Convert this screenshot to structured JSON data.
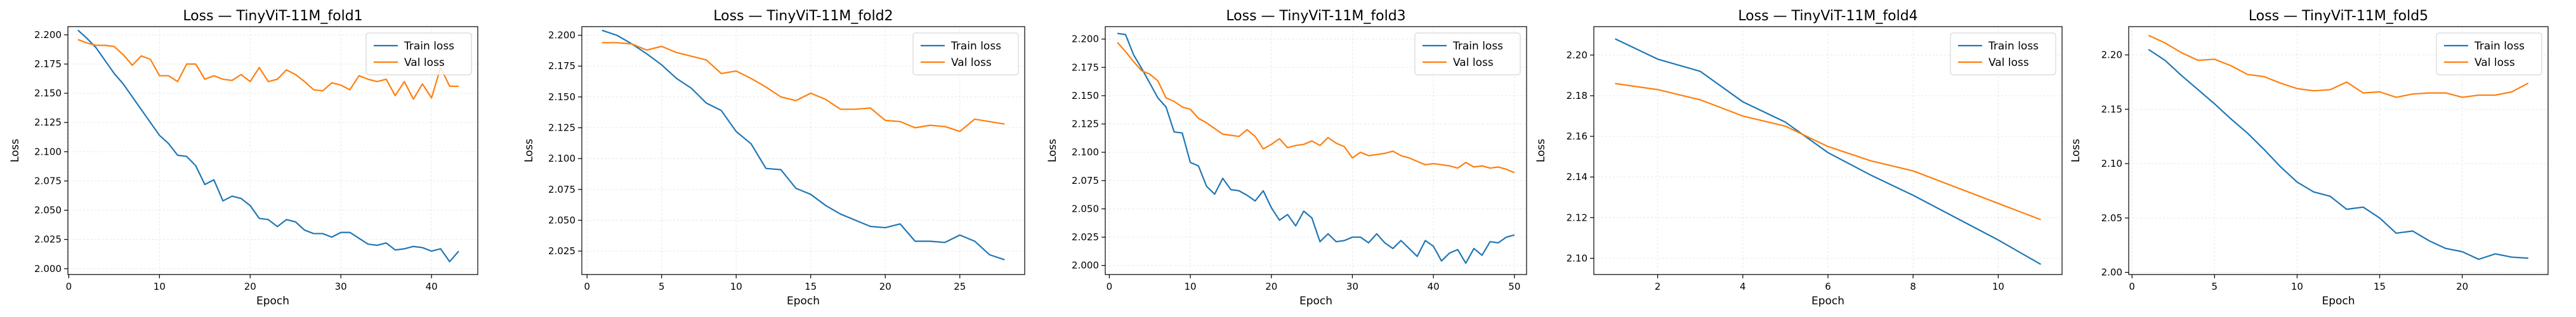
{
  "colors": {
    "train": "#1f77b4",
    "val": "#ff7f0e"
  },
  "chart_data": [
    {
      "type": "line",
      "title": "Loss — TinyViT-11M_fold1",
      "xlabel": "Epoch",
      "ylabel": "Loss",
      "xlim": [
        -0.1,
        45.1
      ],
      "ylim": [
        1.995,
        2.207
      ],
      "xticks": [
        0,
        10,
        20,
        30,
        40
      ],
      "yticks": [
        2.0,
        2.025,
        2.05,
        2.075,
        2.1,
        2.125,
        2.15,
        2.175,
        2.2
      ],
      "tick_decimals": 3,
      "grid": true,
      "legend_position": "upper right",
      "series": [
        {
          "name": "Train loss",
          "color": "#1f77b4",
          "x": [
            1,
            2,
            3,
            4,
            5,
            6,
            7,
            8,
            9,
            10,
            11,
            12,
            13,
            14,
            15,
            16,
            17,
            18,
            19,
            20,
            21,
            22,
            23,
            24,
            25,
            26,
            27,
            28,
            29,
            30,
            31,
            32,
            33,
            34,
            35,
            36,
            37,
            38,
            39,
            40,
            41,
            42,
            43
          ],
          "y": [
            2.204,
            2.197,
            2.189,
            2.178,
            2.167,
            2.158,
            2.147,
            2.136,
            2.125,
            2.114,
            2.107,
            2.097,
            2.096,
            2.088,
            2.072,
            2.076,
            2.058,
            2.062,
            2.06,
            2.054,
            2.043,
            2.042,
            2.036,
            2.042,
            2.04,
            2.033,
            2.03,
            2.03,
            2.027,
            2.031,
            2.031,
            2.026,
            2.021,
            2.02,
            2.022,
            2.016,
            2.017,
            2.019,
            2.018,
            2.015,
            2.017,
            2.006,
            2.015
          ]
        },
        {
          "name": "Val loss",
          "color": "#ff7f0e",
          "x": [
            1,
            2,
            3,
            4,
            5,
            6,
            7,
            8,
            9,
            10,
            11,
            12,
            13,
            14,
            15,
            16,
            17,
            18,
            19,
            20,
            21,
            22,
            23,
            24,
            25,
            26,
            27,
            28,
            29,
            30,
            31,
            32,
            33,
            34,
            35,
            36,
            37,
            38,
            39,
            40,
            41,
            42,
            43
          ],
          "y": [
            2.196,
            2.193,
            2.191,
            2.191,
            2.19,
            2.183,
            2.174,
            2.182,
            2.179,
            2.165,
            2.165,
            2.16,
            2.175,
            2.175,
            2.162,
            2.165,
            2.162,
            2.161,
            2.166,
            2.16,
            2.172,
            2.16,
            2.162,
            2.17,
            2.166,
            2.16,
            2.153,
            2.152,
            2.159,
            2.157,
            2.153,
            2.165,
            2.162,
            2.16,
            2.162,
            2.148,
            2.16,
            2.145,
            2.158,
            2.146,
            2.172,
            2.156,
            2.156
          ]
        }
      ]
    },
    {
      "type": "line",
      "title": "Loss — TinyViT-11M_fold2",
      "xlabel": "Epoch",
      "ylabel": "Loss",
      "xlim": [
        -0.35,
        29.35
      ],
      "ylim": [
        2.006,
        2.207
      ],
      "xticks": [
        0,
        5,
        10,
        15,
        20,
        25
      ],
      "yticks": [
        2.025,
        2.05,
        2.075,
        2.1,
        2.125,
        2.15,
        2.175,
        2.2
      ],
      "tick_decimals": 3,
      "grid": true,
      "legend_position": "upper right",
      "series": [
        {
          "name": "Train loss",
          "color": "#1f77b4",
          "x": [
            1,
            2,
            3,
            4,
            5,
            6,
            7,
            8,
            9,
            10,
            11,
            12,
            13,
            14,
            15,
            16,
            17,
            18,
            19,
            20,
            21,
            22,
            23,
            24,
            25,
            26,
            27,
            28
          ],
          "y": [
            2.204,
            2.2,
            2.193,
            2.185,
            2.176,
            2.165,
            2.157,
            2.145,
            2.139,
            2.122,
            2.112,
            2.092,
            2.091,
            2.076,
            2.071,
            2.062,
            2.055,
            2.05,
            2.045,
            2.044,
            2.047,
            2.033,
            2.033,
            2.032,
            2.038,
            2.033,
            2.022,
            2.018
          ]
        },
        {
          "name": "Val loss",
          "color": "#ff7f0e",
          "x": [
            1,
            2,
            3,
            4,
            5,
            6,
            7,
            8,
            9,
            10,
            11,
            12,
            13,
            14,
            15,
            16,
            17,
            18,
            19,
            20,
            21,
            22,
            23,
            24,
            25,
            26,
            27,
            28
          ],
          "y": [
            2.194,
            2.194,
            2.193,
            2.188,
            2.191,
            2.186,
            2.183,
            2.18,
            2.169,
            2.171,
            2.165,
            2.158,
            2.15,
            2.147,
            2.153,
            2.148,
            2.14,
            2.14,
            2.141,
            2.131,
            2.13,
            2.125,
            2.127,
            2.126,
            2.122,
            2.132,
            2.13,
            2.128
          ]
        }
      ]
    },
    {
      "type": "line",
      "title": "Loss — TinyViT-11M_fold3",
      "xlabel": "Epoch",
      "ylabel": "Loss",
      "xlim": [
        -0.5,
        51.5
      ],
      "ylim": [
        1.992,
        2.211
      ],
      "xticks": [
        0,
        10,
        20,
        30,
        40,
        50
      ],
      "yticks": [
        2.0,
        2.025,
        2.05,
        2.075,
        2.1,
        2.125,
        2.15,
        2.175,
        2.2
      ],
      "tick_decimals": 3,
      "grid": true,
      "legend_position": "upper right",
      "series": [
        {
          "name": "Train loss",
          "color": "#1f77b4",
          "x": [
            1,
            2,
            3,
            4,
            5,
            6,
            7,
            8,
            9,
            10,
            11,
            12,
            13,
            14,
            15,
            16,
            17,
            18,
            19,
            20,
            21,
            22,
            23,
            24,
            25,
            26,
            27,
            28,
            29,
            30,
            31,
            32,
            33,
            34,
            35,
            36,
            37,
            38,
            39,
            40,
            41,
            42,
            43,
            44,
            45,
            46,
            47,
            48,
            49,
            50
          ],
          "y": [
            2.205,
            2.204,
            2.186,
            2.174,
            2.161,
            2.148,
            2.14,
            2.118,
            2.117,
            2.091,
            2.088,
            2.07,
            2.063,
            2.077,
            2.067,
            2.066,
            2.062,
            2.057,
            2.066,
            2.051,
            2.04,
            2.045,
            2.035,
            2.048,
            2.042,
            2.021,
            2.028,
            2.021,
            2.022,
            2.025,
            2.025,
            2.02,
            2.028,
            2.02,
            2.015,
            2.022,
            2.015,
            2.008,
            2.022,
            2.017,
            2.004,
            2.011,
            2.014,
            2.002,
            2.015,
            2.009,
            2.021,
            2.02,
            2.025,
            2.027
          ]
        },
        {
          "name": "Val loss",
          "color": "#ff7f0e",
          "x": [
            1,
            2,
            3,
            4,
            5,
            6,
            7,
            8,
            9,
            10,
            11,
            12,
            13,
            14,
            15,
            16,
            17,
            18,
            19,
            20,
            21,
            22,
            23,
            24,
            25,
            26,
            27,
            28,
            29,
            30,
            31,
            32,
            33,
            34,
            35,
            36,
            37,
            38,
            39,
            40,
            41,
            42,
            43,
            44,
            45,
            46,
            47,
            48,
            49,
            50
          ],
          "y": [
            2.197,
            2.189,
            2.18,
            2.172,
            2.169,
            2.163,
            2.148,
            2.145,
            2.14,
            2.138,
            2.13,
            2.126,
            2.121,
            2.116,
            2.115,
            2.114,
            2.12,
            2.114,
            2.103,
            2.107,
            2.112,
            2.104,
            2.106,
            2.107,
            2.11,
            2.106,
            2.113,
            2.108,
            2.105,
            2.095,
            2.1,
            2.097,
            2.098,
            2.099,
            2.101,
            2.097,
            2.095,
            2.092,
            2.089,
            2.09,
            2.089,
            2.088,
            2.086,
            2.091,
            2.087,
            2.088,
            2.086,
            2.087,
            2.085,
            2.082
          ]
        }
      ]
    },
    {
      "type": "line",
      "title": "Loss — TinyViT-11M_fold4",
      "xlabel": "Epoch",
      "ylabel": "Loss",
      "xlim": [
        0.5,
        11.5
      ],
      "ylim": [
        2.092,
        2.214
      ],
      "xticks": [
        2,
        4,
        6,
        8,
        10
      ],
      "yticks": [
        2.1,
        2.12,
        2.14,
        2.16,
        2.18,
        2.2
      ],
      "tick_decimals": 2,
      "grid": true,
      "legend_position": "upper right",
      "series": [
        {
          "name": "Train loss",
          "color": "#1f77b4",
          "x": [
            1,
            2,
            3,
            4,
            5,
            6,
            7,
            8,
            9,
            10,
            11
          ],
          "y": [
            2.208,
            2.198,
            2.192,
            2.177,
            2.167,
            2.152,
            2.141,
            2.131,
            2.12,
            2.109,
            2.097
          ]
        },
        {
          "name": "Val loss",
          "color": "#ff7f0e",
          "x": [
            1,
            2,
            3,
            4,
            5,
            6,
            7,
            8,
            9,
            10,
            11
          ],
          "y": [
            2.186,
            2.183,
            2.178,
            2.17,
            2.165,
            2.155,
            2.148,
            2.143,
            2.135,
            2.127,
            2.119
          ]
        }
      ]
    },
    {
      "type": "line",
      "title": "Loss — TinyViT-11M_fold5",
      "xlabel": "Epoch",
      "ylabel": "Loss",
      "xlim": [
        -0.2,
        25.2
      ],
      "ylim": [
        1.998,
        2.226
      ],
      "xticks": [
        0,
        5,
        10,
        15,
        20
      ],
      "yticks": [
        2.0,
        2.05,
        2.1,
        2.15,
        2.2
      ],
      "tick_decimals": 2,
      "grid": true,
      "legend_position": "upper right",
      "series": [
        {
          "name": "Train loss",
          "color": "#1f77b4",
          "x": [
            1,
            2,
            3,
            4,
            5,
            6,
            7,
            8,
            9,
            10,
            11,
            12,
            13,
            14,
            15,
            16,
            17,
            18,
            19,
            20,
            21,
            22,
            23,
            24
          ],
          "y": [
            2.205,
            2.195,
            2.181,
            2.168,
            2.155,
            2.141,
            2.128,
            2.113,
            2.097,
            2.083,
            2.074,
            2.07,
            2.058,
            2.06,
            2.05,
            2.036,
            2.038,
            2.029,
            2.022,
            2.019,
            2.012,
            2.017,
            2.014,
            2.013
          ]
        },
        {
          "name": "Val loss",
          "color": "#ff7f0e",
          "x": [
            1,
            2,
            3,
            4,
            5,
            6,
            7,
            8,
            9,
            10,
            11,
            12,
            13,
            14,
            15,
            16,
            17,
            18,
            19,
            20,
            21,
            22,
            23,
            24
          ],
          "y": [
            2.218,
            2.211,
            2.202,
            2.195,
            2.196,
            2.19,
            2.182,
            2.18,
            2.174,
            2.169,
            2.167,
            2.168,
            2.175,
            2.165,
            2.166,
            2.161,
            2.164,
            2.165,
            2.165,
            2.161,
            2.163,
            2.163,
            2.166,
            2.174
          ]
        }
      ]
    }
  ]
}
